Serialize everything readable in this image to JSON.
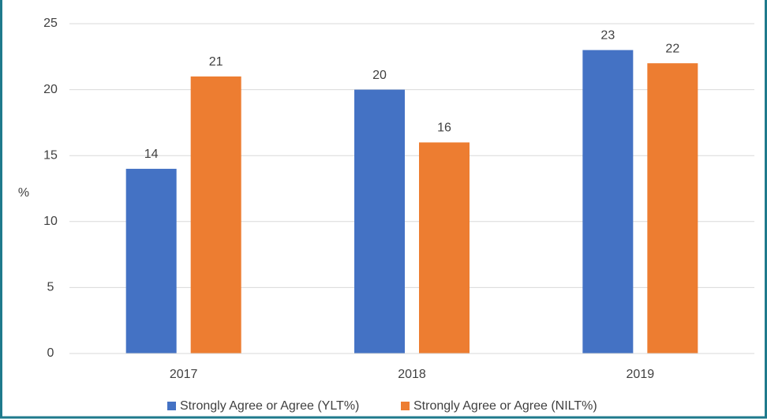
{
  "chart_data": {
    "type": "bar",
    "ylabel": "%",
    "categories": [
      "2017",
      "2018",
      "2019"
    ],
    "series": [
      {
        "name": "Strongly Agree or Agree (YLT%)",
        "color": "#4472c4",
        "values": [
          14,
          20,
          23
        ]
      },
      {
        "name": "Strongly Agree or Agree (NILT%)",
        "color": "#ed7d31",
        "values": [
          21,
          16,
          22
        ]
      }
    ],
    "ylim": [
      0,
      25
    ],
    "yticks": [
      0,
      5,
      10,
      15,
      20,
      25
    ],
    "grid": true,
    "legend": "bottom"
  }
}
